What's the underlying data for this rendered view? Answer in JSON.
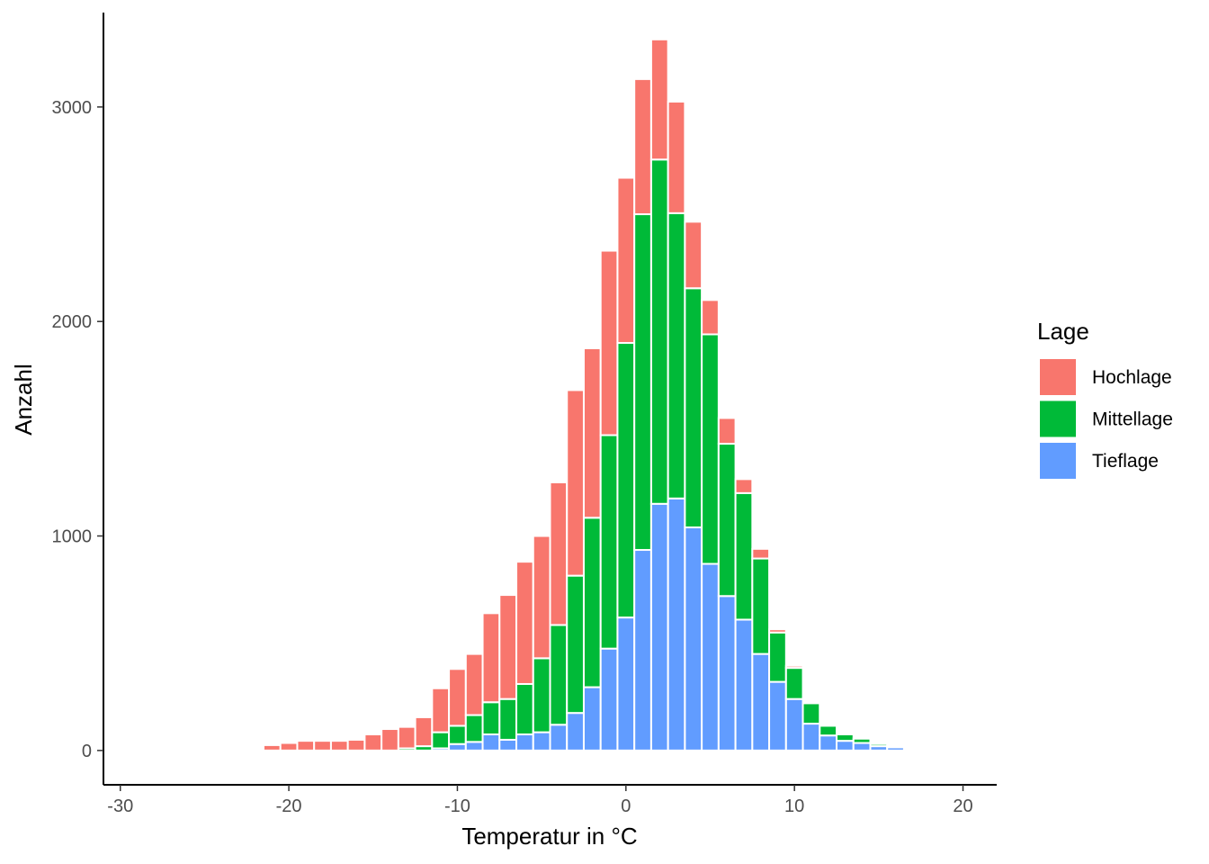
{
  "chart_data": {
    "type": "bar",
    "stacked": true,
    "title": "",
    "xlabel": "Temperatur in °C",
    "ylabel": "Anzahl",
    "xlim": [
      -31,
      22
    ],
    "ylim": [
      -160,
      3440
    ],
    "bin_width": 1,
    "x_ticks": [
      -30,
      -20,
      -10,
      0,
      10,
      20
    ],
    "x_tick_labels": [
      "-30",
      "-20",
      "-10",
      "0",
      "10",
      "20"
    ],
    "y_ticks": [
      0,
      1000,
      2000,
      3000
    ],
    "y_tick_labels": [
      "0",
      "1000",
      "2000",
      "3000"
    ],
    "grid": false,
    "legend": {
      "title": "Lage",
      "position": "right"
    },
    "x": [
      -22,
      -21,
      -20,
      -19,
      -18,
      -17,
      -16,
      -15,
      -14,
      -13,
      -12,
      -11,
      -10,
      -9,
      -8,
      -7,
      -6,
      -5,
      -4,
      -3,
      -2,
      -1,
      0,
      1,
      2,
      3,
      4,
      5,
      6,
      7,
      8,
      9,
      10,
      11,
      12,
      13,
      14,
      15,
      16,
      17
    ],
    "series": [
      {
        "name": "Tieflage",
        "color": "#619CFF",
        "values": [
          0,
          0,
          0,
          0,
          0,
          0,
          0,
          0,
          0,
          0,
          0,
          10,
          30,
          40,
          75,
          50,
          75,
          85,
          120,
          175,
          295,
          475,
          620,
          935,
          1150,
          1175,
          1040,
          870,
          720,
          610,
          450,
          320,
          240,
          125,
          70,
          45,
          35,
          20,
          15,
          5
        ]
      },
      {
        "name": "Mittellage",
        "color": "#00BA38",
        "values": [
          0,
          0,
          0,
          0,
          0,
          0,
          0,
          0,
          0,
          10,
          20,
          75,
          85,
          125,
          150,
          190,
          235,
          345,
          465,
          640,
          790,
          995,
          1280,
          1565,
          1605,
          1330,
          1115,
          1070,
          710,
          590,
          445,
          230,
          145,
          95,
          45,
          30,
          20,
          10,
          5,
          0
        ]
      },
      {
        "name": "Hochlage",
        "color": "#F8766D",
        "values": [
          5,
          25,
          35,
          45,
          45,
          45,
          50,
          75,
          100,
          100,
          135,
          205,
          265,
          285,
          415,
          485,
          570,
          570,
          665,
          865,
          790,
          860,
          770,
          630,
          560,
          520,
          310,
          160,
          120,
          65,
          45,
          15,
          10,
          0,
          0,
          0,
          0,
          0,
          0,
          0
        ]
      }
    ]
  }
}
